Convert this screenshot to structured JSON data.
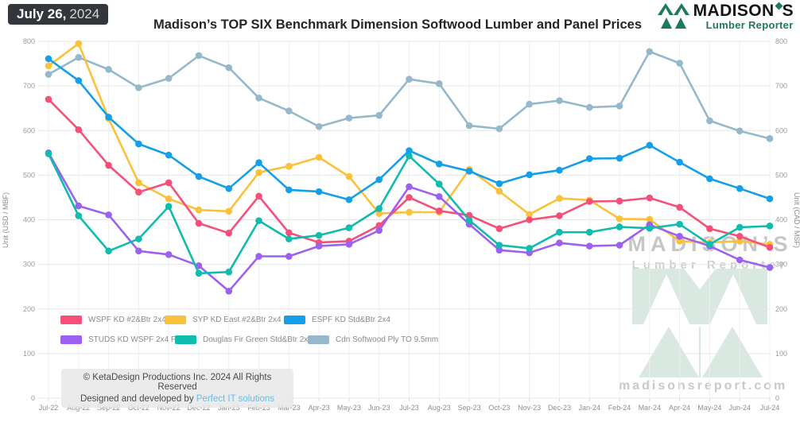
{
  "header": {
    "date_bold": "July 26,",
    "date_year": "2024",
    "title": "Madison’s TOP SIX Benchmark Dimension Softwood Lumber and Panel Prices",
    "logo_name_part1": "MADISON",
    "logo_name_part2": "S",
    "logo_subtitle": "Lumber Reporter"
  },
  "chart_data": {
    "type": "line",
    "x": [
      "Jul-22",
      "Aug-22",
      "Sep-22",
      "Oct-22",
      "Nov-22",
      "Dec-22",
      "Jan-23",
      "Feb-23",
      "Mar-23",
      "Apr-23",
      "May-23",
      "Jun-23",
      "Jul-23",
      "Aug-23",
      "Sep-23",
      "Oct-23",
      "Nov-23",
      "Dec-23",
      "Jan-24",
      "Feb-24",
      "Mar-24",
      "Apr-24",
      "May-24",
      "Jun-24",
      "Jul-24"
    ],
    "ylim": [
      0,
      800
    ],
    "ytick_step": 100,
    "grid": true,
    "ylabel_left": "Unit (USD / MBF)",
    "ylabel_right": "Unit (CAD / MSF)",
    "legend_position": "inside-bottom-left",
    "series": [
      {
        "name": "WSPF KD #2&Btr 2x4",
        "color": "#F74F78",
        "values": [
          670,
          602,
          522,
          462,
          483,
          392,
          370,
          453,
          371,
          349,
          352,
          387,
          450,
          420,
          410,
          380,
          400,
          409,
          441,
          442,
          449,
          428,
          380,
          363,
          338
        ]
      },
      {
        "name": "SYP KD East #2&Btr 2x4",
        "color": "#FBC13A",
        "values": [
          745,
          795,
          627,
          483,
          447,
          422,
          419,
          506,
          520,
          540,
          497,
          414,
          417,
          417,
          513,
          464,
          412,
          448,
          444,
          402,
          401,
          352,
          349,
          352,
          345
        ]
      },
      {
        "name": "ESPF KD Std&Btr 2x4",
        "color": "#14A0E9",
        "values": [
          761,
          712,
          630,
          570,
          545,
          497,
          470,
          528,
          467,
          463,
          445,
          490,
          555,
          525,
          509,
          481,
          501,
          511,
          537,
          538,
          567,
          529,
          492,
          470,
          447
        ]
      },
      {
        "name": "STUDS KD WSPF 2x4 PET",
        "color": "#9D61F2",
        "values": [
          550,
          431,
          411,
          330,
          322,
          297,
          240,
          318,
          318,
          341,
          345,
          376,
          474,
          452,
          390,
          332,
          326,
          348,
          341,
          343,
          389,
          363,
          341,
          310,
          293
        ]
      },
      {
        "name": "Douglas Fir Green Std&Btr 2x4",
        "color": "#0FBCAE",
        "values": [
          548,
          409,
          330,
          357,
          430,
          280,
          283,
          398,
          357,
          365,
          382,
          425,
          543,
          480,
          399,
          343,
          336,
          372,
          372,
          384,
          381,
          390,
          345,
          383,
          386
        ]
      },
      {
        "name": "Cdn Softwood Ply TO 9.5mm",
        "color": "#95B9CB",
        "values": [
          726,
          764,
          737,
          696,
          717,
          768,
          741,
          673,
          644,
          609,
          628,
          634,
          715,
          705,
          611,
          604,
          659,
          667,
          652,
          655,
          777,
          751,
          622,
          599,
          582
        ]
      }
    ]
  },
  "footer": {
    "copyright_line1": "© KetaDesign Productions Inc. 2024 All Rights Reserved",
    "copyright_line2_prefix": "Designed and developed by ",
    "copyright_link": "Perfect IT solutions"
  },
  "watermark": {
    "line1": "MADISON’S",
    "line2": "Lumber Reporter",
    "domain": "madisonsreport.com"
  }
}
